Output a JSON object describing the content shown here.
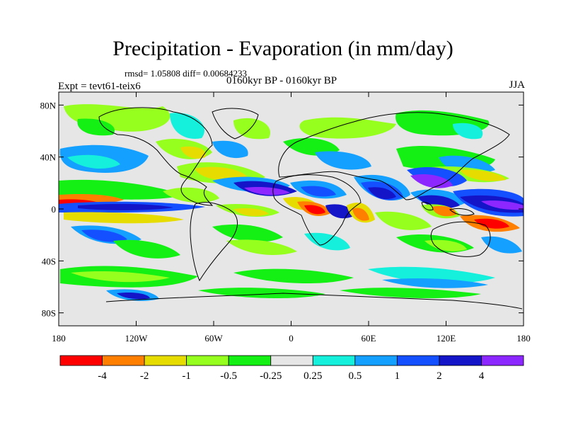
{
  "header": {
    "title": "Precipitation - Evaporation (in mm/day)",
    "stats": "rmsd= 1.05808 diff= 0.00684233",
    "period": "0160kyr BP - 0160kyr BP",
    "experiment": "Expt = tevt61-teix6",
    "season": "JJA"
  },
  "axes": {
    "lat_ticks": [
      "80N",
      "40N",
      "0",
      "40S",
      "80S"
    ],
    "lon_ticks": [
      "180",
      "120W",
      "60W",
      "0",
      "60E",
      "120E",
      "180"
    ]
  },
  "colorbar": {
    "colors": [
      "#ff0000",
      "#ff8000",
      "#e6dc00",
      "#96ff1e",
      "#14f014",
      "#e6e6e6",
      "#14f0dc",
      "#14a0ff",
      "#1450ff",
      "#1414c8",
      "#8c28ff"
    ],
    "labels": [
      "-4",
      "-2",
      "-1",
      "-0.5",
      "-0.25",
      "0.25",
      "0.5",
      "1",
      "2",
      "4"
    ]
  }
}
